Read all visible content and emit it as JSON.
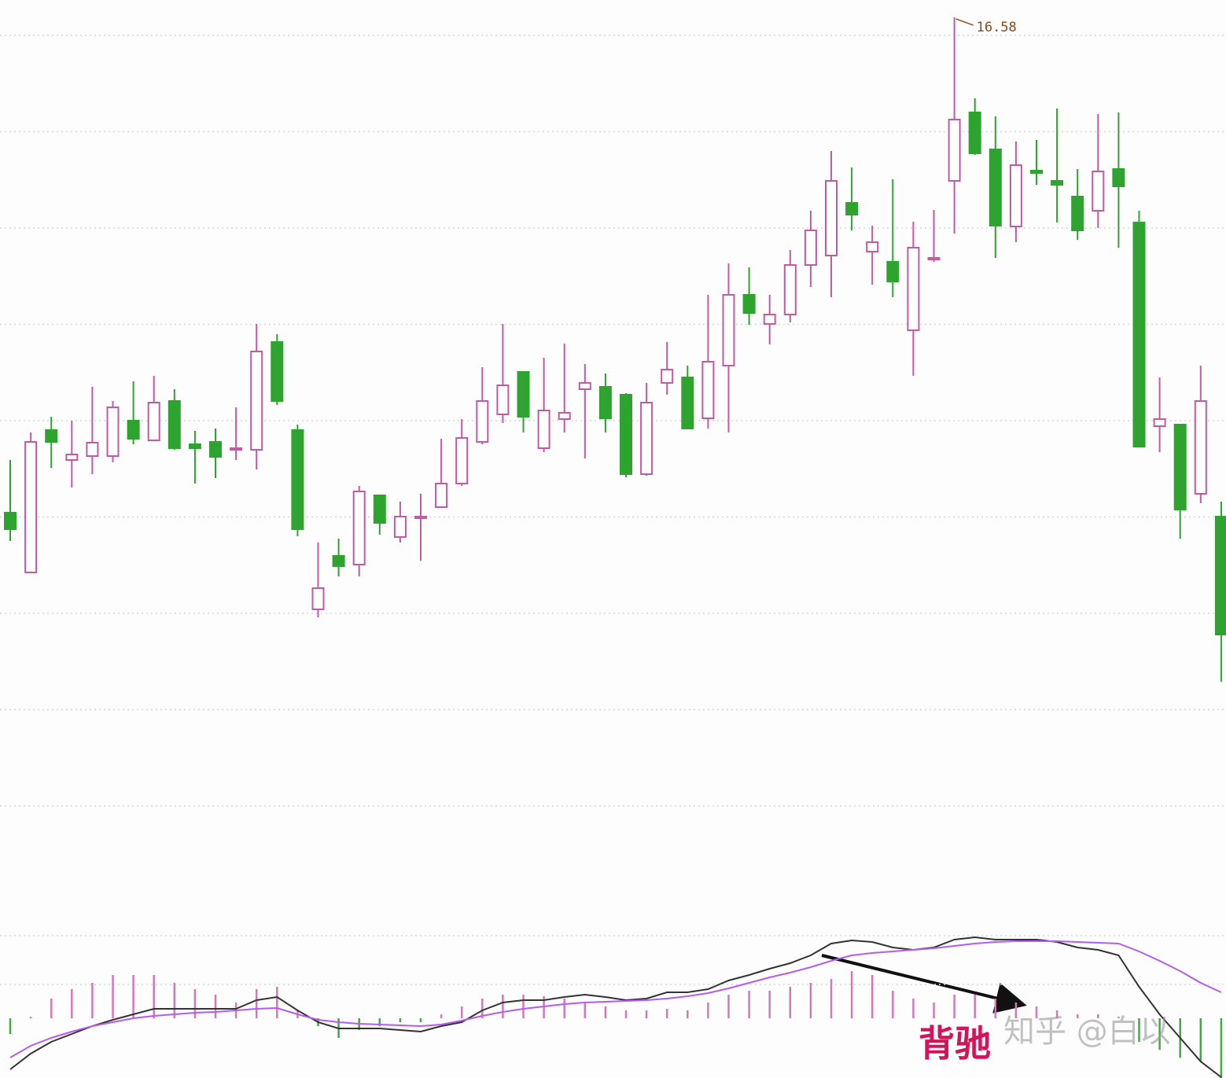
{
  "chart_data": [
    {
      "type": "candlestick",
      "open": [
        10.28,
        9.52,
        11.33,
        10.95,
        11.0,
        11.0,
        11.45,
        11.2,
        11.7,
        11.15,
        11.18,
        11.08,
        11.08,
        12.45,
        11.33,
        9.05,
        9.73,
        9.62,
        10.5,
        9.97,
        10.22,
        10.35,
        10.65,
        11.18,
        11.53,
        12.07,
        11.1,
        11.47,
        11.85,
        11.88,
        11.78,
        10.77,
        11.93,
        12.0,
        11.48,
        12.15,
        13.05,
        12.68,
        12.8,
        13.43,
        13.55,
        14.22,
        13.6,
        13.47,
        12.6,
        13.5,
        14.5,
        15.37,
        14.9,
        13.92,
        14.63,
        14.5,
        14.3,
        14.12,
        14.65,
        13.97,
        11.38,
        11.4,
        10.52,
        10.23
      ],
      "high": [
        10.95,
        11.3,
        11.5,
        11.45,
        11.88,
        11.7,
        11.95,
        12.02,
        11.85,
        11.32,
        11.35,
        11.62,
        12.68,
        12.55,
        11.4,
        9.9,
        9.95,
        10.62,
        10.5,
        10.42,
        10.52,
        11.22,
        11.47,
        12.13,
        12.68,
        12.07,
        12.25,
        12.43,
        12.17,
        12.05,
        11.8,
        11.93,
        12.45,
        12.15,
        13.05,
        13.45,
        13.4,
        13.05,
        13.62,
        14.12,
        14.88,
        14.67,
        13.93,
        14.52,
        13.98,
        14.13,
        16.58,
        15.55,
        15.32,
        15.0,
        15.02,
        15.42,
        14.65,
        15.35,
        15.37,
        14.12,
        12.0,
        11.4,
        12.15,
        10.42
      ],
      "low": [
        9.92,
        9.52,
        10.85,
        10.6,
        10.77,
        10.92,
        11.15,
        11.2,
        11.08,
        10.65,
        10.72,
        10.95,
        10.83,
        11.65,
        9.98,
        8.95,
        9.47,
        9.47,
        10.0,
        9.9,
        9.67,
        10.35,
        10.62,
        11.15,
        11.42,
        11.3,
        11.05,
        11.3,
        10.97,
        11.3,
        10.73,
        10.75,
        11.78,
        11.35,
        11.35,
        11.3,
        12.67,
        12.42,
        12.7,
        13.15,
        13.02,
        13.87,
        13.18,
        13.02,
        12.02,
        13.47,
        13.83,
        14.83,
        13.52,
        13.72,
        14.45,
        13.97,
        13.75,
        13.9,
        13.65,
        11.12,
        11.05,
        9.95,
        10.4,
        8.13
      ],
      "close": [
        10.07,
        11.18,
        11.18,
        11.02,
        11.17,
        11.62,
        11.22,
        11.68,
        11.1,
        11.1,
        10.99,
        11.1,
        12.33,
        11.7,
        10.07,
        9.32,
        9.6,
        10.55,
        10.15,
        10.23,
        10.23,
        10.65,
        11.23,
        11.7,
        11.9,
        11.5,
        11.58,
        11.55,
        11.93,
        11.48,
        10.77,
        11.68,
        12.1,
        11.35,
        12.2,
        13.05,
        12.82,
        12.8,
        13.43,
        13.87,
        14.5,
        14.07,
        13.72,
        13.22,
        13.65,
        13.52,
        15.28,
        14.85,
        13.93,
        14.7,
        14.6,
        14.45,
        13.87,
        14.62,
        14.43,
        11.12,
        11.47,
        10.32,
        11.7,
        8.73
      ],
      "up_color": "#c25aa6",
      "down_color": "#2fa32f",
      "ylim": [
        5.3,
        16.8
      ],
      "yticks": [
        6.55,
        7.775,
        9,
        10.225,
        11.45,
        12.675,
        13.9,
        15.125,
        16.35
      ],
      "grid": true
    },
    {
      "type": "macd",
      "histogram": [
        -0.2,
        0.02,
        0.25,
        0.37,
        0.45,
        0.55,
        0.55,
        0.55,
        0.45,
        0.37,
        0.3,
        0.2,
        0.37,
        0.4,
        0.1,
        -0.1,
        -0.25,
        -0.15,
        -0.1,
        -0.05,
        -0.05,
        0.05,
        0.15,
        0.25,
        0.3,
        0.3,
        0.28,
        0.25,
        0.2,
        0.15,
        0.1,
        0.1,
        0.12,
        0.1,
        0.2,
        0.3,
        0.35,
        0.35,
        0.4,
        0.45,
        0.5,
        0.6,
        0.55,
        0.35,
        0.25,
        0.2,
        0.3,
        0.3,
        0.25,
        0.2,
        0.15,
        0.1,
        0.05,
        0.05,
        0.02,
        -0.3,
        -0.4,
        -0.5,
        -0.55,
        -0.76
      ],
      "up_color": "#d07ab8",
      "down_color": "#3cae3c",
      "series": [
        {
          "color": "#333333",
          "values": [
            -0.65,
            -0.45,
            -0.3,
            -0.2,
            -0.1,
            -0.02,
            0.05,
            0.12,
            0.12,
            0.12,
            0.12,
            0.12,
            0.23,
            0.27,
            0.1,
            -0.05,
            -0.13,
            -0.13,
            -0.13,
            -0.15,
            -0.17,
            -0.1,
            -0.05,
            0.1,
            0.2,
            0.23,
            0.23,
            0.27,
            0.3,
            0.27,
            0.23,
            0.25,
            0.33,
            0.33,
            0.37,
            0.48,
            0.55,
            0.63,
            0.7,
            0.8,
            0.95,
            0.99,
            0.97,
            0.9,
            0.87,
            0.9,
            1.0,
            1.03,
            1.0,
            1.0,
            1.0,
            0.97,
            0.9,
            0.87,
            0.8,
            0.4,
            0.05,
            -0.25,
            -0.55,
            -0.75
          ]
        },
        {
          "color": "#b45cf0",
          "values": [
            -0.5,
            -0.35,
            -0.25,
            -0.17,
            -0.1,
            -0.05,
            0,
            0.03,
            0.05,
            0.07,
            0.08,
            0.1,
            0.12,
            0.13,
            0.05,
            -0.02,
            -0.05,
            -0.07,
            -0.08,
            -0.09,
            -0.1,
            -0.08,
            -0.03,
            0.03,
            0.08,
            0.12,
            0.15,
            0.18,
            0.2,
            0.21,
            0.22,
            0.23,
            0.25,
            0.28,
            0.32,
            0.38,
            0.45,
            0.52,
            0.58,
            0.65,
            0.73,
            0.8,
            0.83,
            0.85,
            0.87,
            0.89,
            0.92,
            0.95,
            0.97,
            0.98,
            0.98,
            0.98,
            0.97,
            0.96,
            0.95,
            0.85,
            0.73,
            0.6,
            0.45,
            0.33
          ]
        }
      ],
      "ylim": [
        -0.76,
        1.35
      ],
      "yticks": [
        0.43,
        1.05
      ],
      "grid": true,
      "annotation": "背驰",
      "watermark": "知乎 @白以"
    }
  ]
}
